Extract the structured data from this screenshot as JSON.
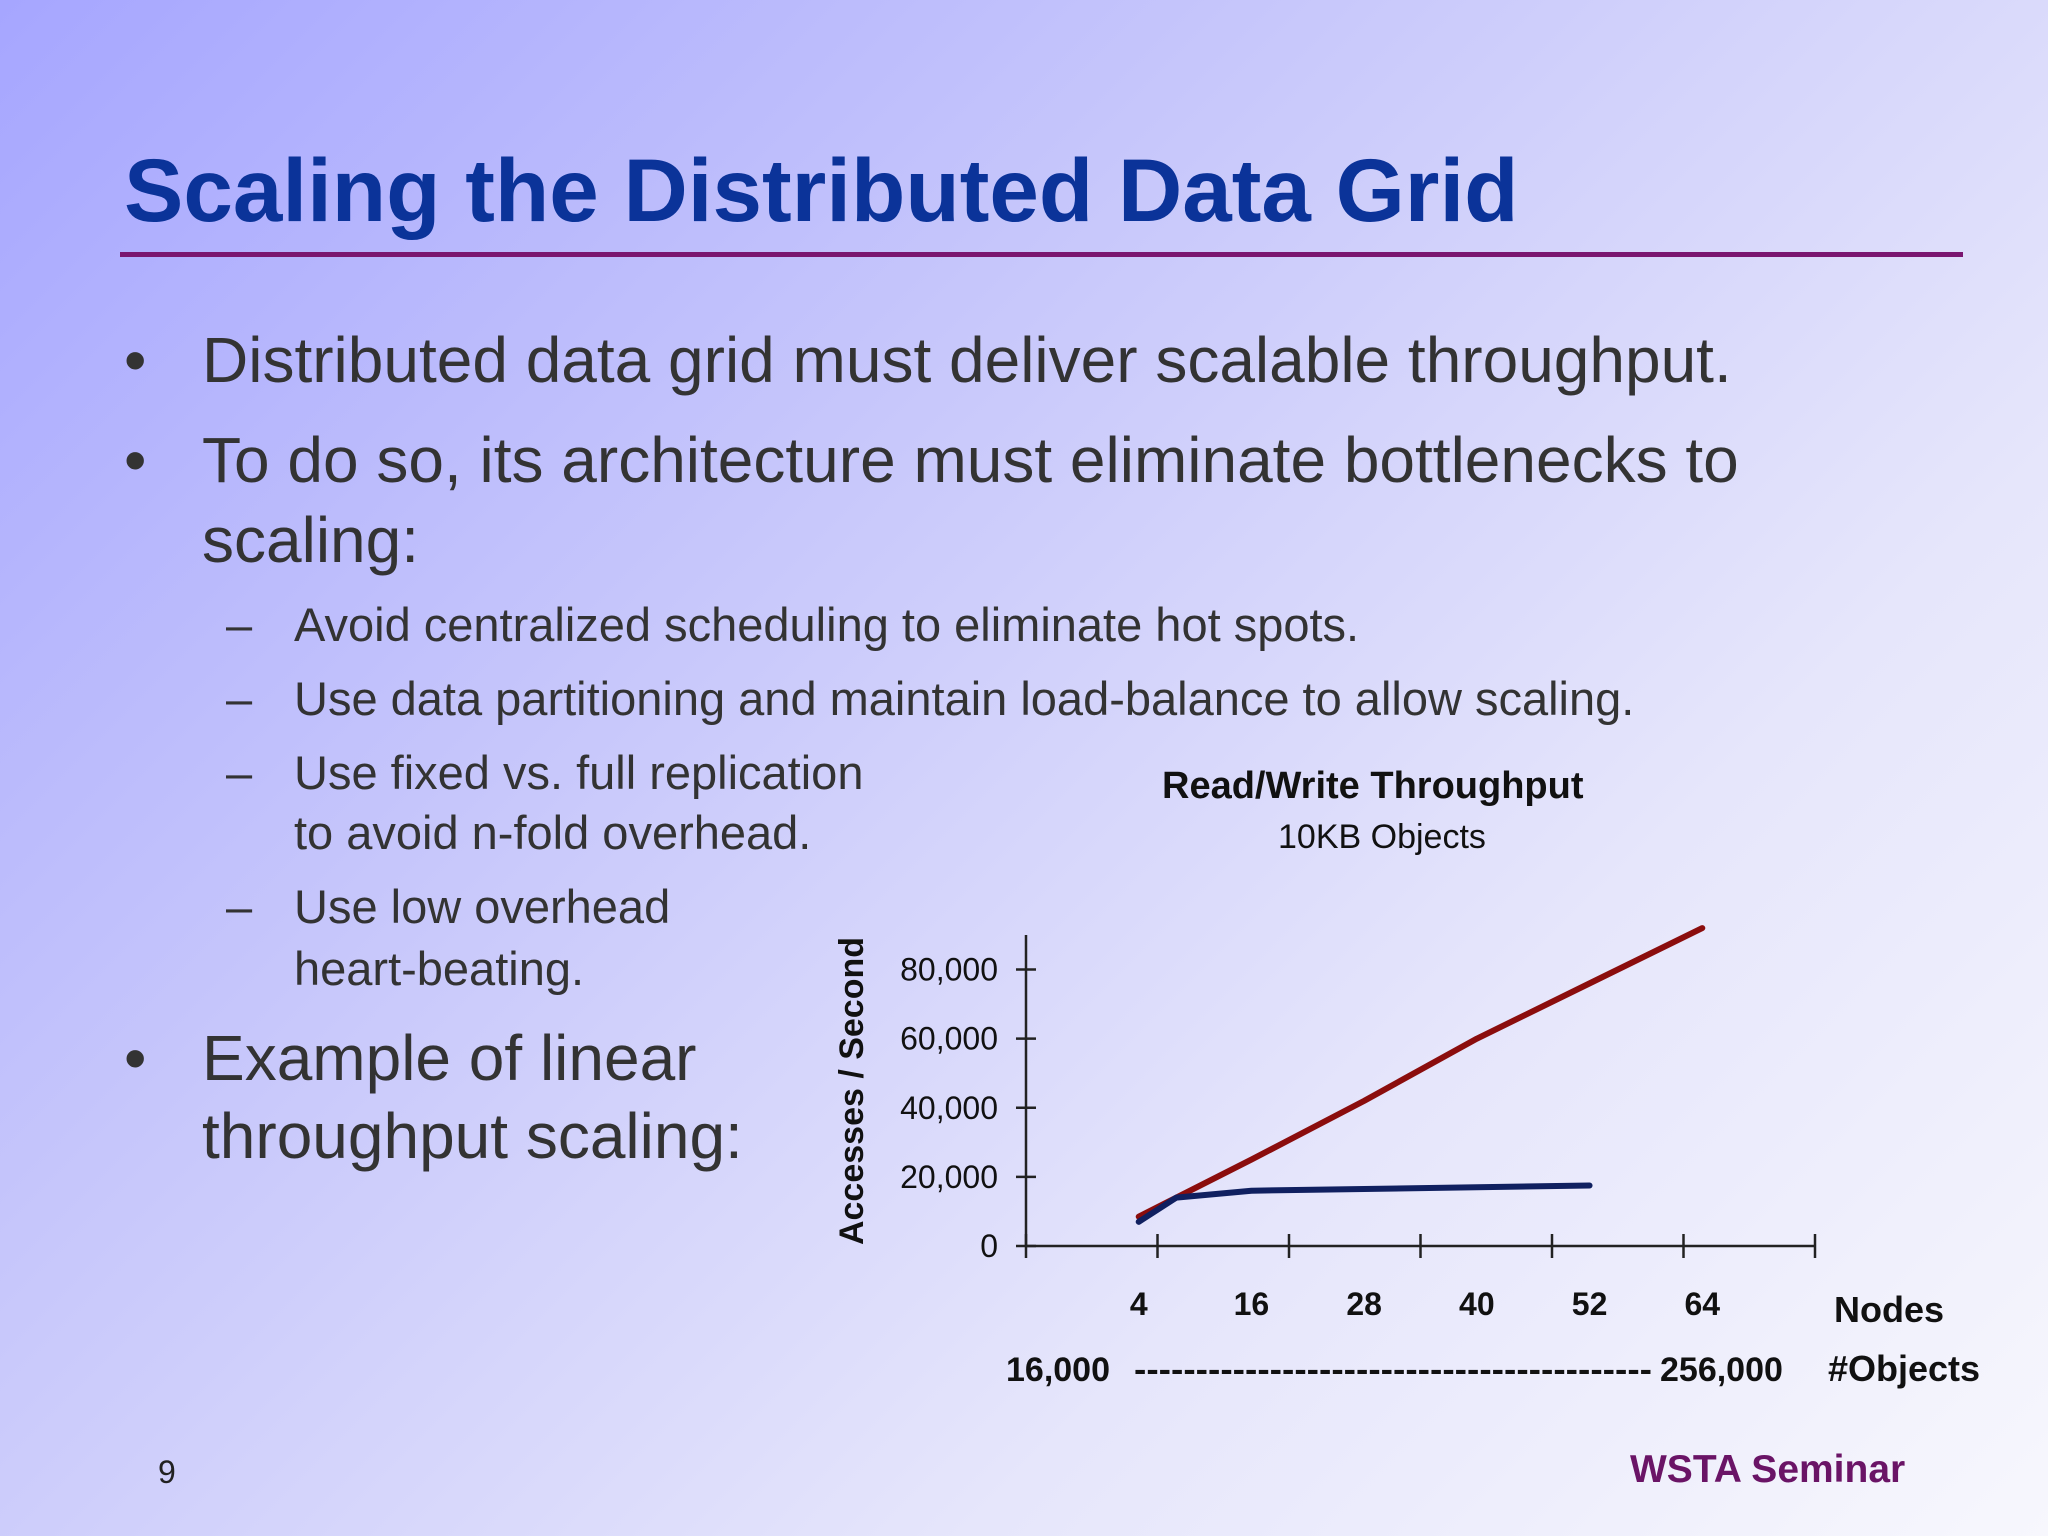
{
  "slide": {
    "title": "Scaling the Distributed Data Grid",
    "bullets": [
      {
        "mark": "•",
        "lines": [
          "Distributed data grid must deliver scalable throughput."
        ]
      },
      {
        "mark": "•",
        "lines": [
          "To do so, its architecture must eliminate bottlenecks to",
          "scaling:"
        ]
      },
      {
        "mark": "•",
        "lines": [
          "Example of linear",
          " throughput scaling:"
        ]
      }
    ],
    "subbullets": [
      {
        "mark": "–",
        "lines": [
          "Avoid centralized scheduling to eliminate hot spots."
        ]
      },
      {
        "mark": "–",
        "lines": [
          "Use data partitioning and maintain load-balance to allow scaling."
        ]
      },
      {
        "mark": "–",
        "lines": [
          "Use fixed vs. full replication",
          " to avoid n-fold overhead."
        ]
      },
      {
        "mark": "–",
        "lines": [
          "Use low overhead",
          " heart-beating."
        ]
      }
    ],
    "slide_number": "9",
    "footer": "WSTA Seminar"
  },
  "chart_data": {
    "type": "line",
    "title": "Read/Write Throughput",
    "subtitle": "10KB Objects",
    "ylabel": "Accesses / Second",
    "xlabel": "Nodes",
    "x2label": "#Objects",
    "x_ticks": [
      "4",
      "16",
      "28",
      "40",
      "52",
      "64"
    ],
    "y_ticks": [
      "0",
      "20,000",
      "40,000",
      "60,000",
      "80,000"
    ],
    "objects_range": {
      "start": "16,000",
      "dashes": "------------------------------------------",
      "end": "256,000"
    },
    "xlim": [
      -8,
      76
    ],
    "ylim": [
      0,
      90000
    ],
    "series": [
      {
        "color": "#8b0d0d",
        "x": [
          4,
          16,
          28,
          40,
          52,
          64
        ],
        "y": [
          8500,
          25000,
          42000,
          60000,
          76000,
          92000
        ]
      },
      {
        "color": "#102060",
        "x": [
          4,
          8,
          16,
          28,
          40,
          52
        ],
        "y": [
          7000,
          14000,
          16000,
          16500,
          17000,
          17500
        ]
      }
    ],
    "grid": false
  }
}
